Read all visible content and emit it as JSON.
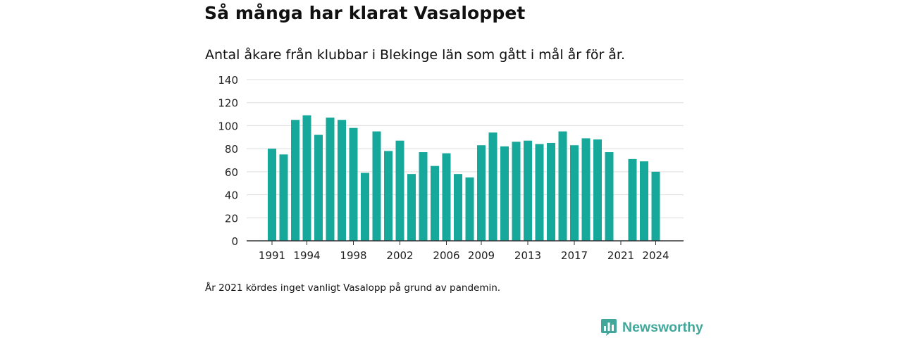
{
  "header": {
    "title": "Så många har klarat Vasaloppet",
    "subtitle": "Antal åkare från klubbar i Blekinge län som gått i mål år för år."
  },
  "footer": {
    "note": "År 2021 kördes inget vanligt Vasalopp på grund av pandemin.",
    "brand": "Newsworthy"
  },
  "colors": {
    "bar": "#16a89a",
    "brand": "#42a79b",
    "grid": "#dddddd",
    "axis": "#333333"
  },
  "chart_data": {
    "type": "bar",
    "categories": [
      "1991",
      "1992",
      "1993",
      "1994",
      "1995",
      "1996",
      "1997",
      "1998",
      "1999",
      "2000",
      "2001",
      "2002",
      "2003",
      "2004",
      "2005",
      "2006",
      "2007",
      "2008",
      "2009",
      "2010",
      "2011",
      "2012",
      "2013",
      "2014",
      "2015",
      "2016",
      "2017",
      "2018",
      "2019",
      "2020",
      "2021",
      "2022",
      "2023",
      "2024"
    ],
    "values": [
      80,
      75,
      105,
      109,
      92,
      107,
      105,
      98,
      59,
      95,
      78,
      87,
      58,
      77,
      65,
      76,
      58,
      55,
      83,
      94,
      82,
      86,
      87,
      84,
      85,
      95,
      83,
      89,
      88,
      77,
      null,
      71,
      69,
      60
    ],
    "x_tick_labels": [
      "1991",
      "1994",
      "1998",
      "2002",
      "2006",
      "2009",
      "2013",
      "2017",
      "2021",
      "2024"
    ],
    "y_ticks": [
      0,
      20,
      40,
      60,
      80,
      100,
      120,
      140
    ],
    "ylim": [
      0,
      140
    ],
    "grid": true,
    "legend": "none",
    "title": "Så många har klarat Vasaloppet",
    "subtitle": "Antal åkare från klubbar i Blekinge län som gått i mål år för år.",
    "xlabel": "",
    "ylabel": ""
  }
}
